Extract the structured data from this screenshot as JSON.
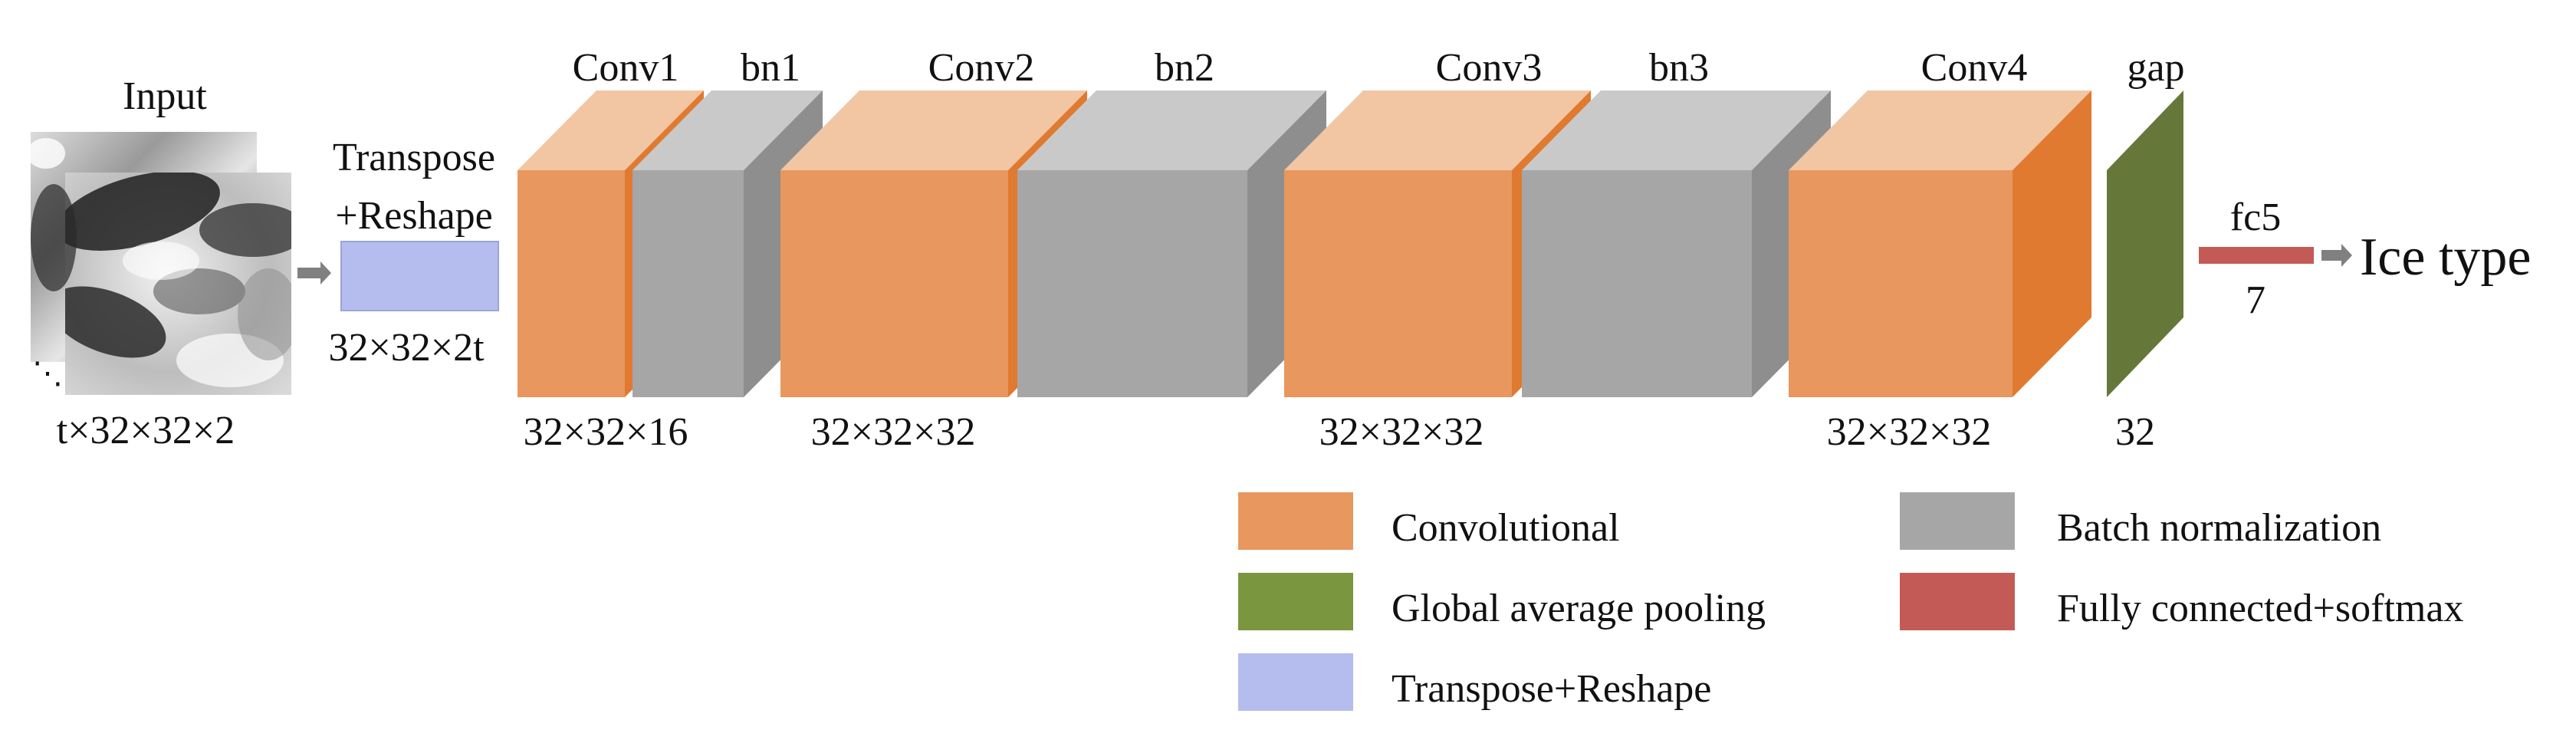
{
  "colors": {
    "conv_front": "#E8975E",
    "conv_top": "#F2C6A3",
    "conv_side": "#E07A30",
    "bn_front": "#A6A6A6",
    "bn_top": "#C9C9C9",
    "bn_side": "#8E8E8E",
    "gap": "#65783A",
    "fc": "#C45A55",
    "reshape": "#B4BDEE",
    "arrow": "#808080"
  },
  "input": {
    "title": "Input",
    "dims": "t×32×32×2",
    "ellipsis": "⋱"
  },
  "reshape": {
    "label_line1": "Transpose",
    "label_line2": "+Reshape",
    "dims": "32×32×2t"
  },
  "layers": {
    "conv1": {
      "label": "Conv1",
      "dims": "32×32×16"
    },
    "bn1": {
      "label": "bn1"
    },
    "conv2": {
      "label": "Conv2",
      "dims": "32×32×32"
    },
    "bn2": {
      "label": "bn2"
    },
    "conv3": {
      "label": "Conv3",
      "dims": "32×32×32"
    },
    "bn3": {
      "label": "bn3"
    },
    "conv4": {
      "label": "Conv4",
      "dims": "32×32×32"
    },
    "gap": {
      "label": "gap",
      "dims": "32"
    },
    "fc5": {
      "label": "fc5",
      "dims": "7"
    }
  },
  "output": {
    "label": "Ice type"
  },
  "legend": {
    "conv": "Convolutional",
    "bn": "Batch normalization",
    "gap": "Global average pooling",
    "fc": "Fully connected+softmax",
    "reshape": "Transpose+Reshape"
  }
}
